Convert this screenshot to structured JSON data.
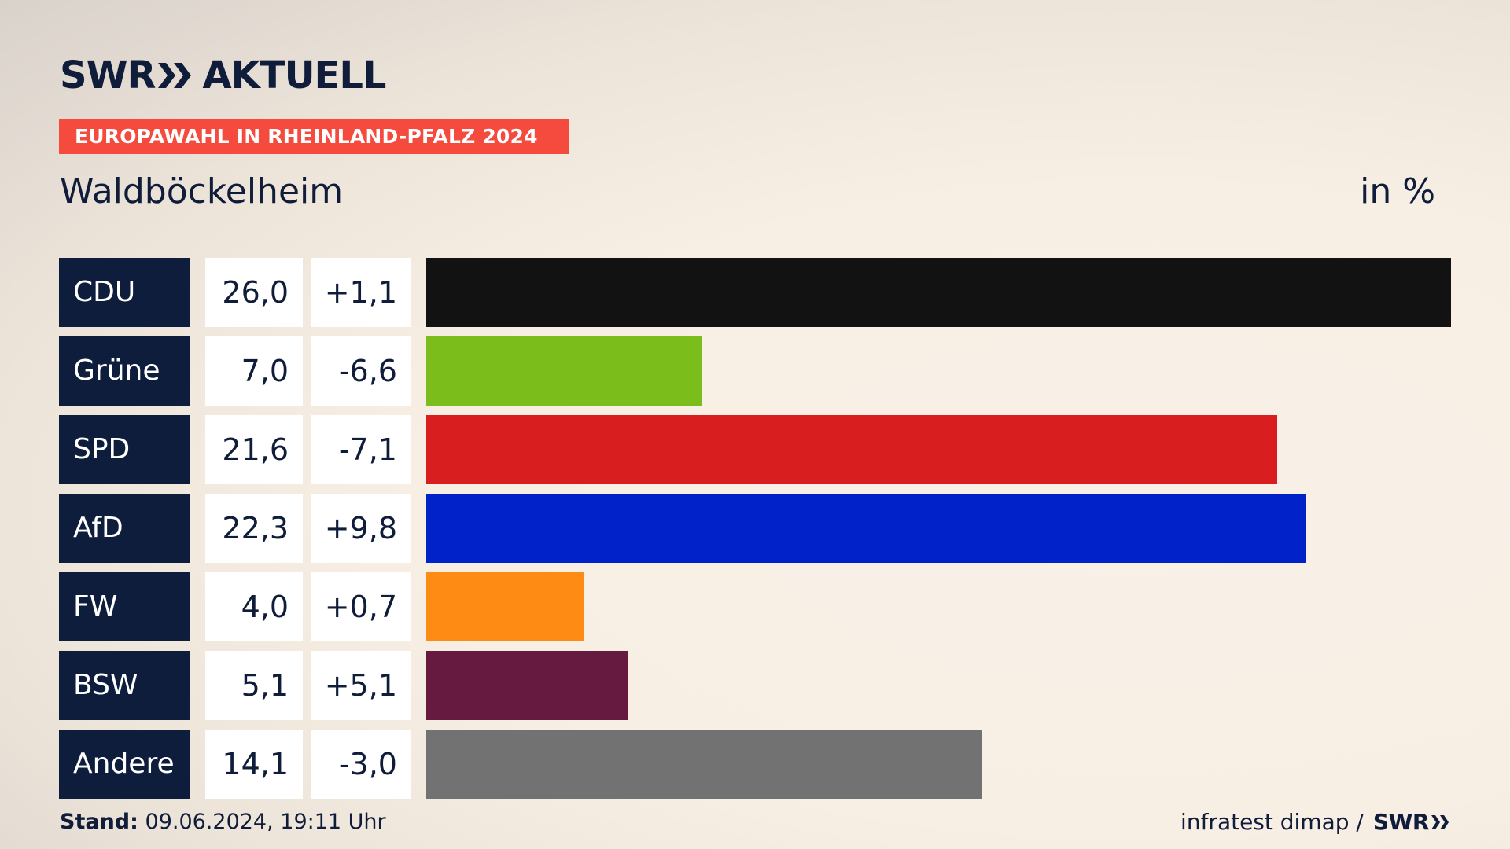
{
  "header": {
    "brand_left": "SWR",
    "brand_right": "AKTUELL",
    "tag": "EUROPAWAHL IN RHEINLAND-PFALZ 2024",
    "place": "Waldböckelheim",
    "unit": "in %"
  },
  "chart_data": {
    "type": "bar",
    "orientation": "horizontal",
    "categories": [
      "CDU",
      "Grüne",
      "SPD",
      "AfD",
      "FW",
      "BSW",
      "Andere"
    ],
    "values": [
      26.0,
      7.0,
      21.6,
      22.3,
      4.0,
      5.1,
      14.1
    ],
    "value_labels": [
      "26,0",
      "7,0",
      "21,6",
      "22,3",
      "4,0",
      "5,1",
      "14,1"
    ],
    "diff_labels": [
      "+1,1",
      "-6,6",
      "-7,1",
      "+9,8",
      "+0,7",
      "+5,1",
      "-3,0"
    ],
    "colors": [
      "#121212",
      "#7bbe1c",
      "#d81e1e",
      "#0222c9",
      "#fd8b14",
      "#661a3f",
      "#727272"
    ],
    "xlim": [
      0,
      26.0
    ],
    "unit": "in %",
    "grid": false
  },
  "footer": {
    "stand_label": "Stand:",
    "stand_value": "09.06.2024, 19:11 Uhr",
    "source": "infratest dimap /",
    "source_brand": "SWR"
  }
}
